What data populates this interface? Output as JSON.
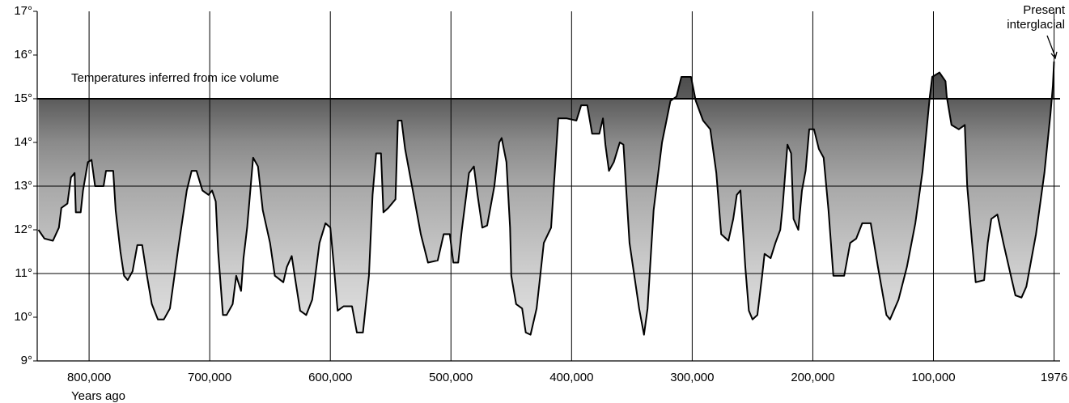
{
  "chart_data": {
    "type": "area",
    "annotation": "Temperatures inferred from ice volume",
    "callout": [
      "Present",
      "interglacial"
    ],
    "xlabel": "Years ago",
    "x": [
      842000,
      837000,
      830000,
      825000,
      823000,
      818000,
      815000,
      812000,
      811000,
      807000,
      805000,
      801000,
      798000,
      795000,
      788000,
      786000,
      780000,
      778000,
      774000,
      771000,
      768000,
      764000,
      760000,
      756000,
      752000,
      748000,
      743000,
      738000,
      733000,
      726000,
      719000,
      715000,
      711000,
      706000,
      701000,
      698000,
      695000,
      693000,
      689000,
      686000,
      681000,
      678000,
      674000,
      672000,
      669000,
      664000,
      660000,
      656000,
      650000,
      646000,
      639000,
      636000,
      632000,
      629000,
      625000,
      620000,
      615000,
      609000,
      604000,
      600000,
      597000,
      594000,
      589000,
      582000,
      578000,
      573000,
      568000,
      565000,
      562000,
      558000,
      556000,
      552000,
      546000,
      544000,
      541000,
      538000,
      531000,
      525000,
      519000,
      511000,
      506000,
      501000,
      498000,
      494000,
      491000,
      488000,
      485000,
      481000,
      478000,
      474000,
      470000,
      464000,
      460000,
      458000,
      454000,
      451000,
      450000,
      446000,
      441000,
      438000,
      434000,
      429000,
      426000,
      423000,
      417000,
      411000,
      404000,
      396000,
      392000,
      387000,
      383000,
      377000,
      374000,
      372000,
      369000,
      365000,
      360000,
      357000,
      352000,
      344000,
      340000,
      337000,
      332000,
      325000,
      318000,
      313000,
      309000,
      301000,
      297000,
      291000,
      285000,
      280000,
      276000,
      270000,
      266000,
      263000,
      260000,
      256000,
      253000,
      250000,
      246000,
      242000,
      240000,
      235000,
      231000,
      227000,
      225000,
      221000,
      218000,
      216000,
      212000,
      209000,
      206000,
      203000,
      199000,
      195000,
      191000,
      187000,
      183000,
      174000,
      172000,
      169000,
      164000,
      159000,
      152000,
      146000,
      139000,
      136000,
      129000,
      122000,
      115000,
      109000,
      103000,
      101000,
      95000,
      90000,
      89000,
      85000,
      79000,
      74000,
      72000,
      68000,
      65000,
      58000,
      55000,
      52000,
      47000,
      42000,
      35000,
      32000,
      27000,
      23000,
      15000,
      8000,
      3000,
      1000,
      0
    ],
    "series": [
      {
        "color": "#000000",
        "values": [
          12.0,
          11.8,
          11.75,
          12.05,
          12.5,
          12.6,
          13.2,
          13.3,
          12.4,
          12.4,
          12.9,
          13.55,
          13.6,
          13.0,
          13.0,
          13.35,
          13.35,
          12.45,
          11.5,
          10.95,
          10.85,
          11.05,
          11.65,
          11.65,
          10.95,
          10.3,
          9.95,
          9.95,
          10.2,
          11.6,
          12.9,
          13.35,
          13.35,
          12.9,
          12.8,
          12.9,
          12.65,
          11.5,
          10.05,
          10.05,
          10.3,
          10.95,
          10.6,
          11.35,
          12.05,
          13.65,
          13.45,
          12.45,
          11.7,
          10.95,
          10.8,
          11.15,
          11.4,
          10.85,
          10.15,
          10.05,
          10.4,
          11.7,
          12.15,
          12.05,
          11.15,
          10.15,
          10.25,
          10.25,
          9.65,
          9.65,
          10.95,
          12.8,
          13.75,
          13.75,
          12.4,
          12.5,
          12.7,
          14.5,
          14.5,
          13.85,
          12.8,
          11.9,
          11.25,
          11.3,
          11.9,
          11.9,
          11.25,
          11.25,
          12.0,
          12.65,
          13.3,
          13.45,
          12.8,
          12.05,
          12.1,
          13.0,
          14.0,
          14.1,
          13.55,
          12.05,
          10.95,
          10.3,
          10.2,
          9.65,
          9.6,
          10.2,
          10.95,
          11.7,
          12.05,
          14.55,
          14.55,
          14.5,
          14.85,
          14.85,
          14.2,
          14.2,
          14.55,
          13.95,
          13.35,
          13.55,
          14.0,
          13.95,
          11.7,
          10.2,
          9.6,
          10.2,
          12.45,
          14.0,
          14.95,
          15.05,
          15.5,
          15.5,
          14.95,
          14.5,
          14.3,
          13.3,
          11.9,
          11.75,
          12.25,
          12.8,
          12.9,
          11.15,
          10.15,
          9.95,
          10.05,
          10.95,
          11.45,
          11.35,
          11.7,
          12.0,
          12.55,
          13.95,
          13.75,
          12.25,
          12.0,
          12.9,
          13.35,
          14.3,
          14.3,
          13.85,
          13.65,
          12.45,
          10.95,
          10.95,
          11.25,
          11.7,
          11.8,
          12.15,
          12.15,
          11.15,
          10.05,
          9.95,
          10.4,
          11.15,
          12.15,
          13.35,
          15.05,
          15.5,
          15.6,
          15.4,
          15.05,
          14.4,
          14.3,
          14.4,
          13.0,
          11.7,
          10.8,
          10.85,
          11.7,
          12.25,
          12.35,
          11.7,
          10.85,
          10.5,
          10.45,
          10.7,
          11.9,
          13.3,
          14.65,
          15.3,
          15.85
        ]
      }
    ],
    "fill_to": 15,
    "hlines": [
      15,
      13,
      11
    ],
    "xlim": [
      843000,
      -5000
    ],
    "xticks": [
      {
        "value": 800000,
        "label": "800,000"
      },
      {
        "value": 700000,
        "label": "700,000"
      },
      {
        "value": 600000,
        "label": "600,000"
      },
      {
        "value": 500000,
        "label": "500,000"
      },
      {
        "value": 400000,
        "label": "400,000"
      },
      {
        "value": 300000,
        "label": "300,000"
      },
      {
        "value": 200000,
        "label": "200,000"
      },
      {
        "value": 100000,
        "label": "100,000"
      },
      {
        "value": 0,
        "label": "1976"
      }
    ],
    "ylim": [
      9,
      17
    ],
    "yticks": [
      {
        "value": 9,
        "label": "9°"
      },
      {
        "value": 10,
        "label": "10°"
      },
      {
        "value": 11,
        "label": "11°"
      },
      {
        "value": 12,
        "label": "12°"
      },
      {
        "value": 13,
        "label": "13°"
      },
      {
        "value": 14,
        "label": "14°"
      },
      {
        "value": 15,
        "label": "15°"
      },
      {
        "value": 16,
        "label": "16°"
      },
      {
        "value": 17,
        "label": "17°"
      }
    ],
    "grid": true
  }
}
